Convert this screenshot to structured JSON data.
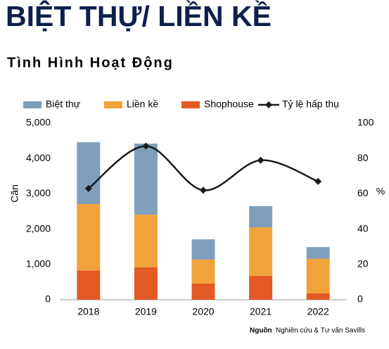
{
  "chart_data": {
    "type": "stacked_bar_line",
    "title": "BIỆT THỰ/ LIỀN KỀ",
    "subtitle": "Tình Hình Hoạt Động",
    "categories": [
      "2018",
      "2019",
      "2020",
      "2021",
      "2022"
    ],
    "series": [
      {
        "name": "Biệt thự",
        "color": "#7f9fbd",
        "values": [
          1750,
          2010,
          570,
          600,
          330
        ]
      },
      {
        "name": "Liền kề",
        "color": "#f2a23b",
        "values": [
          1880,
          1490,
          680,
          1370,
          980
        ]
      },
      {
        "name": "Shophouse",
        "color": "#e35a24",
        "values": [
          830,
          920,
          460,
          680,
          180
        ]
      },
      {
        "name": "Tỷ lệ hấp thụ",
        "color": "#1a1a1a",
        "axis": "y2",
        "values": [
          63,
          87,
          62,
          79,
          67
        ]
      }
    ],
    "ylabel": "Căn",
    "y2label": "%",
    "ylim": [
      0,
      5000
    ],
    "yticks": [
      0,
      {
        "value": 1000,
        "label": "1,000"
      },
      {
        "value": 2000,
        "label": "2,000"
      },
      {
        "value": 3000,
        "label": "3,000"
      },
      {
        "value": 4000,
        "label": "4,000"
      },
      {
        "value": 5000,
        "label": "5,000"
      }
    ],
    "y2lim": [
      0,
      100
    ],
    "y2ticks": [
      0,
      20,
      40,
      60,
      80,
      100
    ],
    "source_label": "Nguồn",
    "source_text": "Nghiên cứu & Tư vấn Savills",
    "legend": "top"
  }
}
